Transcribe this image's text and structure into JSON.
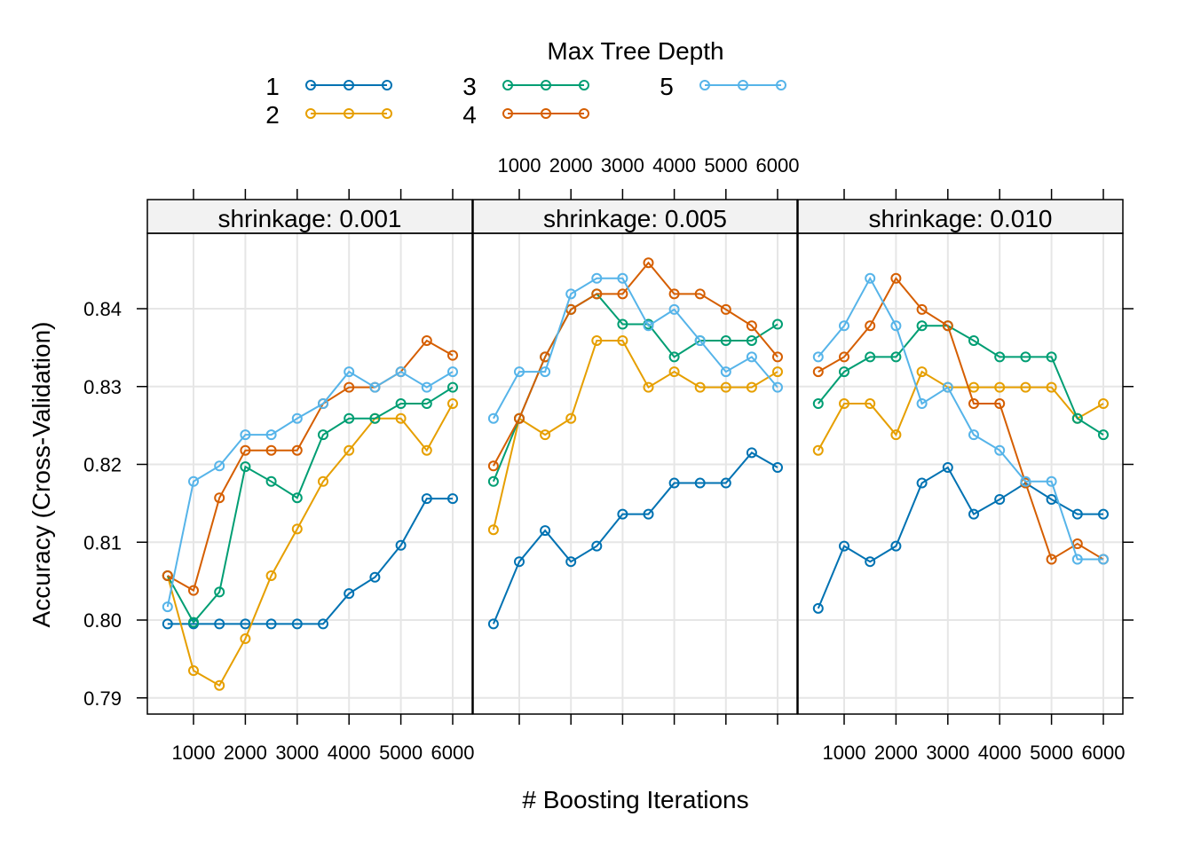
{
  "chart_data": {
    "type": "line",
    "xlabel": "# Boosting Iterations",
    "ylabel": "Accuracy (Cross-Validation)",
    "legend": {
      "title": "Max Tree Depth",
      "placement": "top"
    },
    "grid": true,
    "xlim": [
      250,
      6250
    ],
    "ylim": [
      0.788,
      0.8495
    ],
    "x_ticks": [
      1000,
      2000,
      3000,
      4000,
      5000,
      6000
    ],
    "y_ticks": [
      0.79,
      0.8,
      0.81,
      0.82,
      0.83,
      0.84
    ],
    "y_tick_labels": [
      "0.79",
      "0.80",
      "0.81",
      "0.82",
      "0.83",
      "0.84"
    ],
    "x": [
      500,
      1000,
      1500,
      2000,
      2500,
      3000,
      3500,
      4000,
      4500,
      5000,
      5500,
      6000
    ],
    "series_colors": {
      "1": "#0072B2",
      "2": "#E69F00",
      "3": "#009E73",
      "4": "#D55E00",
      "5": "#56B4E9"
    },
    "panels": [
      {
        "strip": "shrinkage: 0.001",
        "series": [
          {
            "name": "1",
            "values": [
              0.7995,
              0.7995,
              0.7995,
              0.7995,
              0.7995,
              0.7995,
              0.7995,
              0.8034,
              0.8055,
              0.8096,
              0.8156,
              0.8156
            ]
          },
          {
            "name": "2",
            "values": [
              0.8057,
              0.7935,
              0.7916,
              0.7976,
              0.8057,
              0.8117,
              0.8178,
              0.8218,
              0.8259,
              0.8259,
              0.8218,
              0.8278
            ]
          },
          {
            "name": "3",
            "values": [
              0.8057,
              0.7997,
              0.8036,
              0.8197,
              0.8178,
              0.8157,
              0.8238,
              0.8259,
              0.8259,
              0.8278,
              0.8278,
              0.8299
            ]
          },
          {
            "name": "4",
            "values": [
              0.8057,
              0.8038,
              0.8157,
              0.8218,
              0.8218,
              0.8218,
              0.8278,
              0.8299,
              0.8299,
              0.8319,
              0.8359,
              0.834
            ]
          },
          {
            "name": "5",
            "values": [
              0.8017,
              0.8178,
              0.8198,
              0.8238,
              0.8238,
              0.8259,
              0.8278,
              0.8319,
              0.8299,
              0.8319,
              0.8299,
              0.8319
            ]
          }
        ]
      },
      {
        "strip": "shrinkage: 0.005",
        "series": [
          {
            "name": "1",
            "values": [
              0.7995,
              0.8075,
              0.8115,
              0.8075,
              0.8095,
              0.8136,
              0.8136,
              0.8176,
              0.8176,
              0.8176,
              0.8215,
              0.8196
            ]
          },
          {
            "name": "2",
            "values": [
              0.8116,
              0.8259,
              0.8238,
              0.8259,
              0.8359,
              0.8359,
              0.8299,
              0.8319,
              0.8299,
              0.8299,
              0.8299,
              0.8319
            ]
          },
          {
            "name": "3",
            "values": [
              0.8178,
              0.8259,
              0.8338,
              0.8399,
              0.8419,
              0.838,
              0.838,
              0.8338,
              0.8359,
              0.8359,
              0.8359,
              0.838
            ]
          },
          {
            "name": "4",
            "values": [
              0.8198,
              0.8259,
              0.8338,
              0.8399,
              0.8419,
              0.8419,
              0.8459,
              0.8419,
              0.8419,
              0.8399,
              0.8378,
              0.8338
            ]
          },
          {
            "name": "5",
            "values": [
              0.8259,
              0.8319,
              0.8319,
              0.8419,
              0.8439,
              0.8439,
              0.8378,
              0.8399,
              0.8359,
              0.8319,
              0.8338,
              0.8299
            ]
          }
        ]
      },
      {
        "strip": "shrinkage: 0.010",
        "series": [
          {
            "name": "1",
            "values": [
              0.8015,
              0.8095,
              0.8075,
              0.8095,
              0.8176,
              0.8196,
              0.8136,
              0.8155,
              0.8176,
              0.8155,
              0.8136,
              0.8136
            ]
          },
          {
            "name": "2",
            "values": [
              0.8218,
              0.8278,
              0.8278,
              0.8238,
              0.8319,
              0.8299,
              0.8299,
              0.8299,
              0.8299,
              0.8299,
              0.8259,
              0.8278
            ]
          },
          {
            "name": "3",
            "values": [
              0.8278,
              0.8319,
              0.8338,
              0.8338,
              0.8378,
              0.8378,
              0.8359,
              0.8338,
              0.8338,
              0.8338,
              0.8259,
              0.8238
            ]
          },
          {
            "name": "4",
            "values": [
              0.8319,
              0.8338,
              0.8378,
              0.8439,
              0.8399,
              0.8378,
              0.8278,
              0.8278,
              0.8176,
              0.8078,
              0.8098,
              0.8078
            ]
          },
          {
            "name": "5",
            "values": [
              0.8338,
              0.8378,
              0.8439,
              0.8378,
              0.8278,
              0.8299,
              0.8238,
              0.8218,
              0.8178,
              0.8178,
              0.8078,
              0.8078
            ]
          }
        ]
      }
    ]
  }
}
